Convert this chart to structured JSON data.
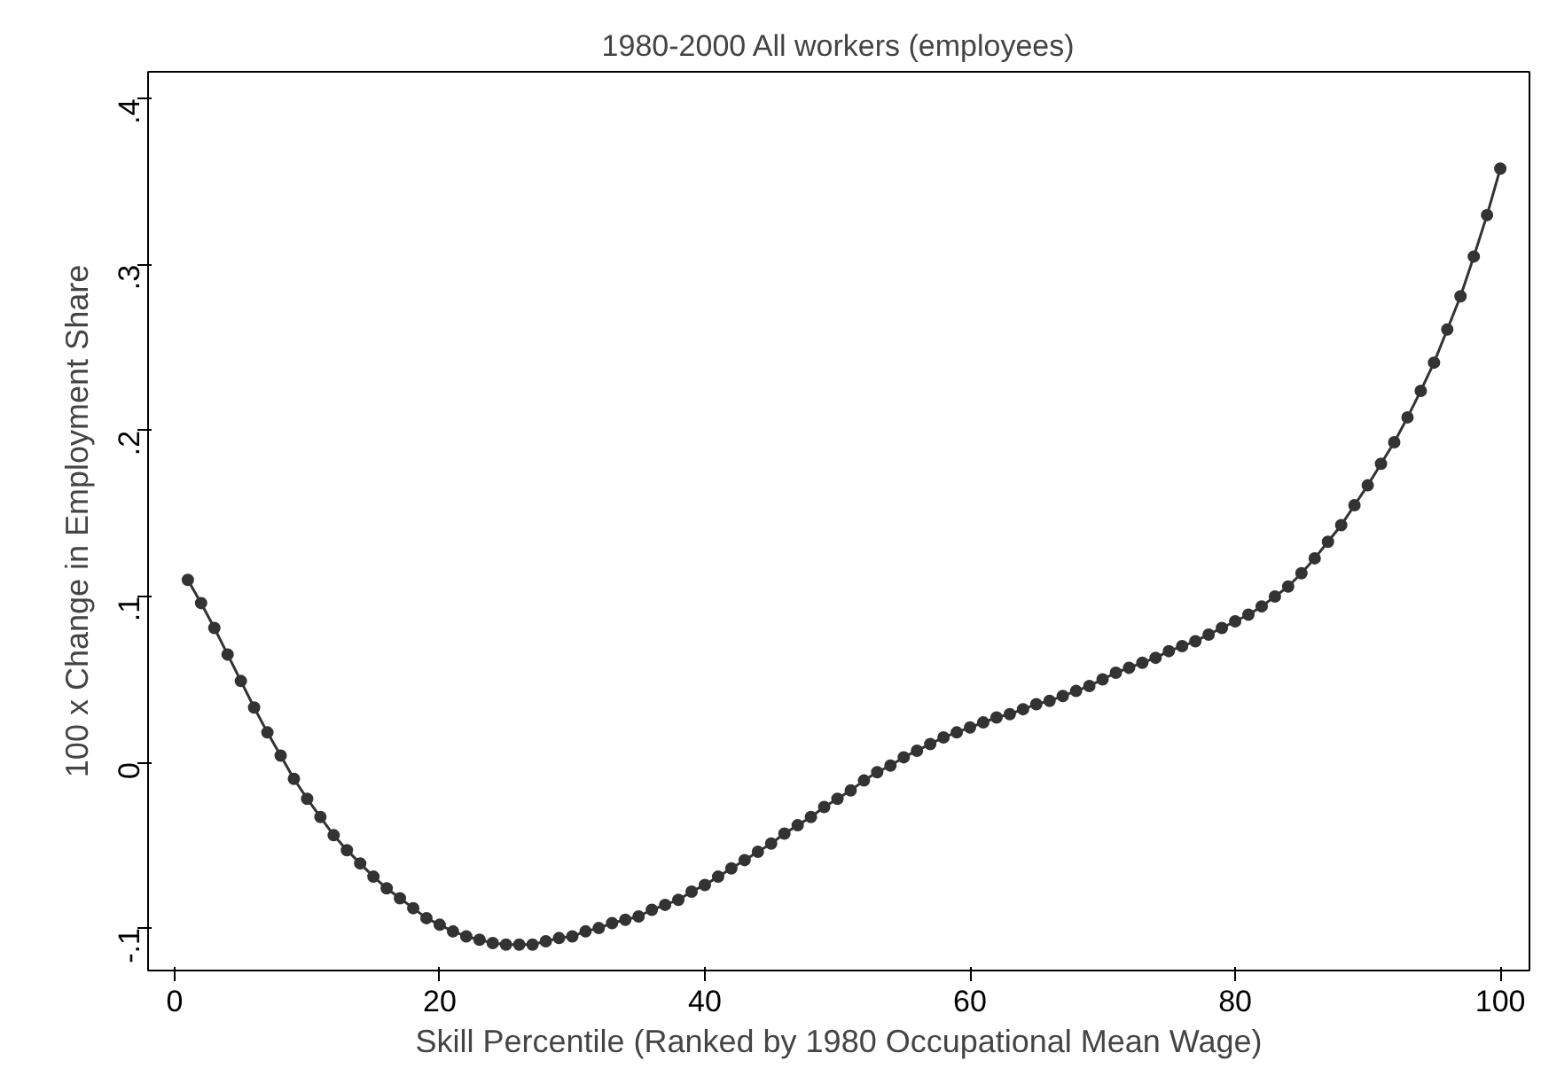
{
  "chart_data": {
    "type": "line",
    "title": "1980-2000 All workers (employees)",
    "xlabel": "Skill Percentile (Ranked by 1980 Occupational Mean Wage)",
    "ylabel": "100 x Change in Employment Share",
    "x": [
      1,
      2,
      3,
      4,
      5,
      6,
      7,
      8,
      9,
      10,
      11,
      12,
      13,
      14,
      15,
      16,
      17,
      18,
      19,
      20,
      21,
      22,
      23,
      24,
      25,
      26,
      27,
      28,
      29,
      30,
      31,
      32,
      33,
      34,
      35,
      36,
      37,
      38,
      39,
      40,
      41,
      42,
      43,
      44,
      45,
      46,
      47,
      48,
      49,
      50,
      51,
      52,
      53,
      54,
      55,
      56,
      57,
      58,
      59,
      60,
      61,
      62,
      63,
      64,
      65,
      66,
      67,
      68,
      69,
      70,
      71,
      72,
      73,
      74,
      75,
      76,
      77,
      78,
      79,
      80,
      81,
      82,
      83,
      84,
      85,
      86,
      87,
      88,
      89,
      90,
      91,
      92,
      93,
      94,
      95,
      96,
      97,
      98,
      99,
      100
    ],
    "series": [
      {
        "color": "#333333",
        "values": [
          0.11,
          0.096,
          0.081,
          0.065,
          0.049,
          0.033,
          0.018,
          0.004,
          -0.01,
          -0.022,
          -0.033,
          -0.044,
          -0.053,
          -0.061,
          -0.069,
          -0.076,
          -0.082,
          -0.088,
          -0.094,
          -0.098,
          -0.102,
          -0.105,
          -0.107,
          -0.109,
          -0.11,
          -0.11,
          -0.11,
          -0.108,
          -0.106,
          -0.105,
          -0.102,
          -0.1,
          -0.097,
          -0.095,
          -0.093,
          -0.089,
          -0.086,
          -0.083,
          -0.078,
          -0.074,
          -0.069,
          -0.064,
          -0.059,
          -0.054,
          -0.049,
          -0.043,
          -0.038,
          -0.033,
          -0.027,
          -0.022,
          -0.017,
          -0.011,
          -0.006,
          -0.002,
          0.003,
          0.007,
          0.011,
          0.015,
          0.018,
          0.021,
          0.024,
          0.027,
          0.029,
          0.032,
          0.035,
          0.037,
          0.04,
          0.043,
          0.046,
          0.05,
          0.054,
          0.057,
          0.06,
          0.063,
          0.067,
          0.07,
          0.073,
          0.077,
          0.081,
          0.085,
          0.089,
          0.094,
          0.1,
          0.106,
          0.114,
          0.123,
          0.133,
          0.143,
          0.155,
          0.167,
          0.18,
          0.193,
          0.208,
          0.224,
          0.241,
          0.261,
          0.281,
          0.305,
          0.33,
          0.358
        ]
      }
    ],
    "marker": "circle",
    "line_style": "solid",
    "grid": false,
    "xlim": [
      -2,
      102.2
    ],
    "xticks": [
      0,
      20,
      40,
      60,
      80,
      100
    ],
    "ylim": [
      -0.1256,
      0.4164
    ],
    "yticks": [
      {
        "value": -0.1,
        "label": "-.1"
      },
      0,
      {
        "value": 0.1,
        "label": ".1"
      },
      {
        "value": 0.2,
        "label": ".2"
      },
      {
        "value": 0.3,
        "label": ".3"
      },
      {
        "value": 0.4,
        "label": ".4"
      }
    ]
  }
}
